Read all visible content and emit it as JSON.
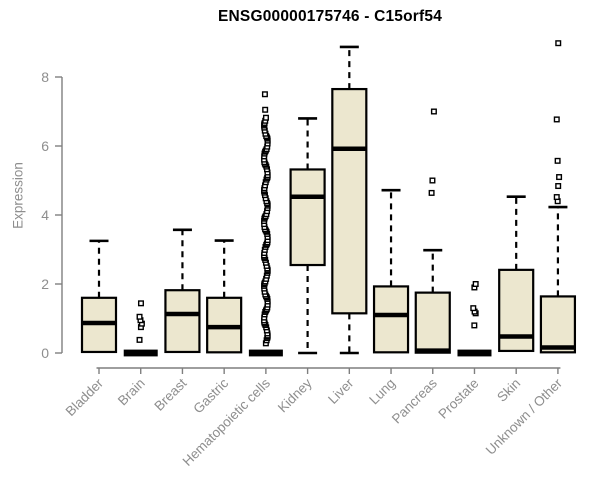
{
  "chart_data": {
    "type": "boxplot",
    "title": "ENSG00000175746 - C15orf54",
    "ylabel": "Expression",
    "xlabel": "",
    "ylim": [
      0,
      9
    ],
    "yticks": [
      0,
      2,
      4,
      6,
      8
    ],
    "grid": false,
    "legend": "none",
    "categories": [
      "Bladder",
      "Brain",
      "Breast",
      "Gastric",
      "Hematopoietic cells",
      "Kidney",
      "Liver",
      "Lung",
      "Pancreas",
      "Prostate",
      "Skin",
      "Unknown / Other"
    ],
    "series": [
      {
        "category": "Bladder",
        "whisker_low": 0.03,
        "q1": 0.03,
        "median": 0.87,
        "q3": 1.6,
        "whisker_high": 3.25,
        "outliers": []
      },
      {
        "category": "Brain",
        "whisker_low": 0,
        "q1": 0,
        "median": 0,
        "q3": 0,
        "whisker_high": 0,
        "outliers": [
          0.38,
          0.75,
          0.85,
          0.95,
          1.05,
          1.44
        ]
      },
      {
        "category": "Breast",
        "whisker_low": 0.03,
        "q1": 0.03,
        "median": 1.13,
        "q3": 1.82,
        "whisker_high": 3.57,
        "outliers": []
      },
      {
        "category": "Gastric",
        "whisker_low": 0.02,
        "q1": 0.02,
        "median": 0.75,
        "q3": 1.6,
        "whisker_high": 3.26,
        "outliers": []
      },
      {
        "category": "Hematopoietic cells",
        "whisker_low": 0,
        "q1": 0,
        "median": 0,
        "q3": 0,
        "whisker_high": 0,
        "outliers": [
          7.05,
          7.5
        ],
        "outlier_band": {
          "min": 0.28,
          "max": 6.82,
          "count": 105
        }
      },
      {
        "category": "Kidney",
        "whisker_low": 0,
        "q1": 2.55,
        "median": 4.53,
        "q3": 5.32,
        "whisker_high": 6.8,
        "outliers": []
      },
      {
        "category": "Liver",
        "whisker_low": 0,
        "q1": 1.15,
        "median": 5.92,
        "q3": 7.65,
        "whisker_high": 8.87,
        "outliers": []
      },
      {
        "category": "Lung",
        "whisker_low": 0.02,
        "q1": 0.02,
        "median": 1.1,
        "q3": 1.93,
        "whisker_high": 4.72,
        "outliers": []
      },
      {
        "category": "Pancreas",
        "whisker_low": 0.01,
        "q1": 0.01,
        "median": 0.07,
        "q3": 1.75,
        "whisker_high": 2.98,
        "outliers": [
          4.64,
          5.0,
          7.0
        ]
      },
      {
        "category": "Prostate",
        "whisker_low": 0,
        "q1": 0,
        "median": 0,
        "q3": 0,
        "whisker_high": 0,
        "outliers": [
          0.8,
          1.15,
          1.2,
          1.3,
          1.9,
          2.0
        ]
      },
      {
        "category": "Skin",
        "whisker_low": 0.06,
        "q1": 0.06,
        "median": 0.48,
        "q3": 2.41,
        "whisker_high": 4.53,
        "outliers": []
      },
      {
        "category": "Unknown / Other",
        "whisker_low": 0.02,
        "q1": 0.02,
        "median": 0.16,
        "q3": 1.64,
        "whisker_high": 4.23,
        "outliers": [
          4.4,
          4.52,
          4.84,
          5.1,
          5.57,
          6.77,
          8.98
        ]
      }
    ],
    "colors": {
      "box_fill": "#ece7cf",
      "box_stroke": "#000000",
      "median": "#000000",
      "whisker": "#000000",
      "axis": "#7f7f7f",
      "tick_label": "#8e8e8e",
      "title": "#000000",
      "background": "#ffffff"
    }
  }
}
